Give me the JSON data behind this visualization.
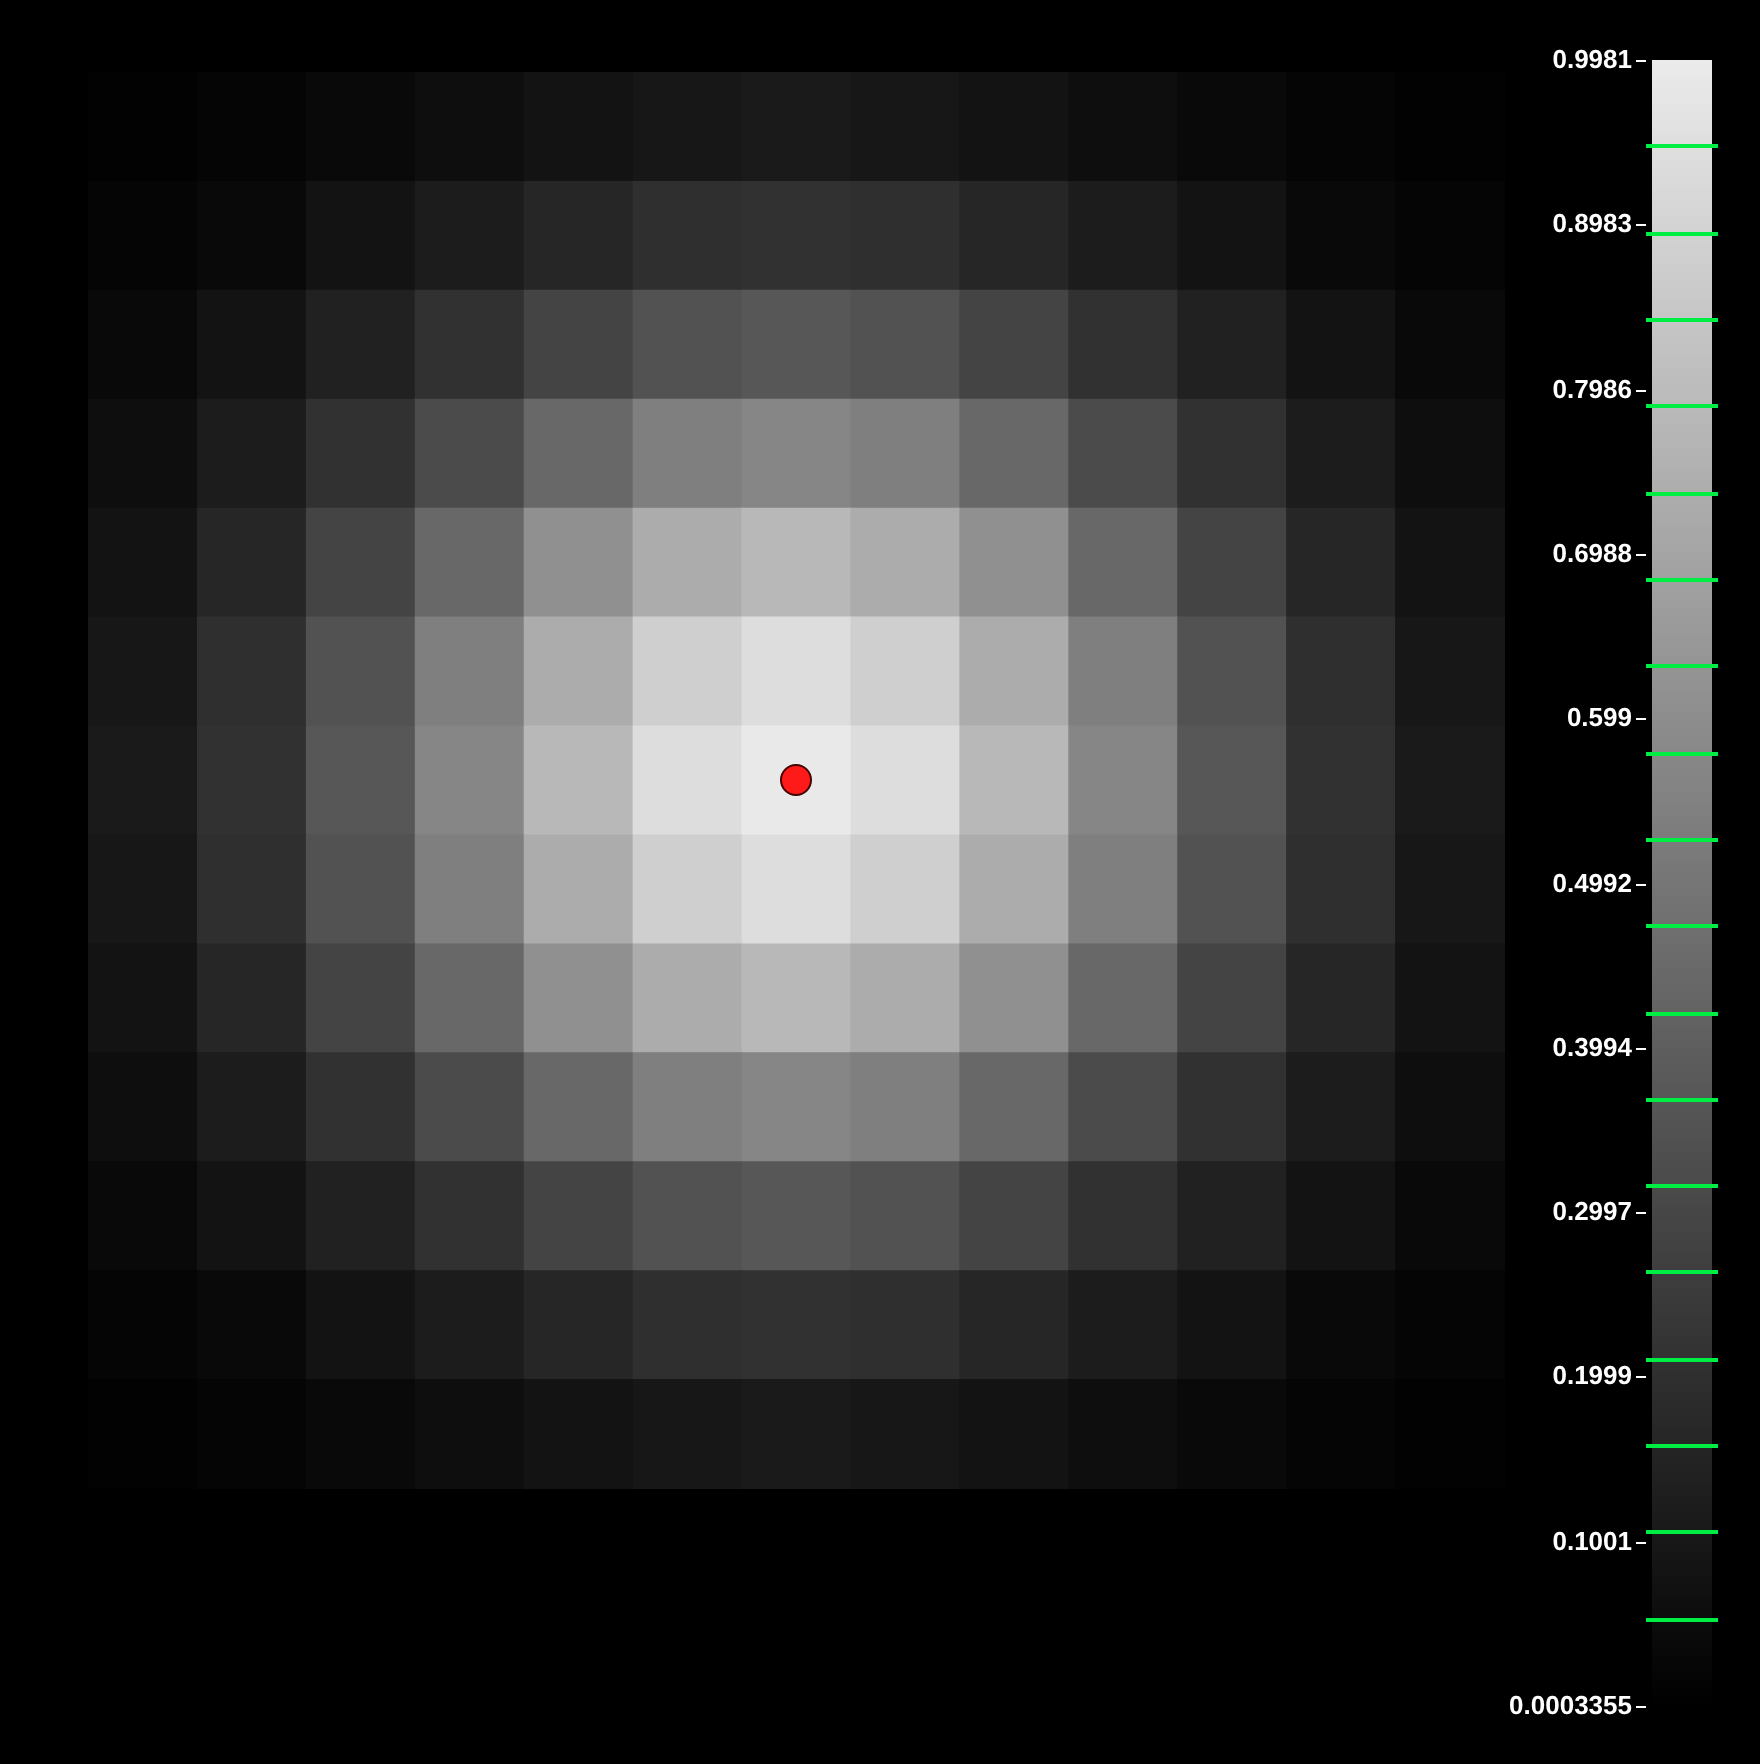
{
  "chart_data": {
    "type": "heatmap",
    "categories": [
      null,
      null,
      null,
      null,
      null,
      null,
      null,
      null,
      null,
      null,
      null,
      null,
      null
    ],
    "y_categories": [
      null,
      null,
      null,
      null,
      null,
      null,
      null,
      null,
      null,
      null,
      null,
      null,
      null
    ],
    "cells": [
      [
        0.01,
        0.02,
        0.04,
        0.06,
        0.08,
        0.1,
        0.11,
        0.1,
        0.08,
        0.06,
        0.04,
        0.02,
        0.01
      ],
      [
        0.02,
        0.04,
        0.08,
        0.12,
        0.16,
        0.2,
        0.21,
        0.2,
        0.16,
        0.12,
        0.08,
        0.04,
        0.02
      ],
      [
        0.04,
        0.08,
        0.14,
        0.21,
        0.29,
        0.35,
        0.37,
        0.35,
        0.29,
        0.21,
        0.14,
        0.08,
        0.04
      ],
      [
        0.06,
        0.12,
        0.21,
        0.32,
        0.44,
        0.54,
        0.57,
        0.54,
        0.44,
        0.32,
        0.21,
        0.12,
        0.06
      ],
      [
        0.08,
        0.16,
        0.29,
        0.44,
        0.61,
        0.73,
        0.78,
        0.73,
        0.61,
        0.44,
        0.29,
        0.16,
        0.08
      ],
      [
        0.1,
        0.2,
        0.35,
        0.54,
        0.73,
        0.88,
        0.94,
        0.88,
        0.73,
        0.54,
        0.35,
        0.2,
        0.1
      ],
      [
        0.11,
        0.21,
        0.37,
        0.57,
        0.78,
        0.94,
        0.99,
        0.94,
        0.78,
        0.57,
        0.37,
        0.21,
        0.11
      ],
      [
        0.1,
        0.2,
        0.35,
        0.54,
        0.73,
        0.88,
        0.94,
        0.88,
        0.73,
        0.54,
        0.35,
        0.2,
        0.1
      ],
      [
        0.08,
        0.16,
        0.29,
        0.44,
        0.61,
        0.73,
        0.78,
        0.73,
        0.61,
        0.44,
        0.29,
        0.16,
        0.08
      ],
      [
        0.06,
        0.12,
        0.21,
        0.32,
        0.44,
        0.54,
        0.57,
        0.54,
        0.44,
        0.32,
        0.21,
        0.12,
        0.06
      ],
      [
        0.04,
        0.08,
        0.14,
        0.21,
        0.29,
        0.35,
        0.37,
        0.35,
        0.29,
        0.21,
        0.14,
        0.08,
        0.04
      ],
      [
        0.02,
        0.04,
        0.08,
        0.12,
        0.16,
        0.2,
        0.21,
        0.2,
        0.16,
        0.12,
        0.08,
        0.04,
        0.02
      ],
      [
        0.01,
        0.02,
        0.04,
        0.06,
        0.08,
        0.1,
        0.11,
        0.1,
        0.08,
        0.06,
        0.04,
        0.02,
        0.01
      ]
    ],
    "clim": [
      0.0003355,
      0.9981
    ],
    "cticks": [
      0.0003355,
      {
        "value": 0.0529,
        "label": null
      },
      0.1001,
      {
        "value": 0.1054,
        "label": null
      },
      {
        "value": 0.1579,
        "label": null
      },
      0.1999,
      {
        "value": 0.2104,
        "label": null
      },
      {
        "value": 0.2629,
        "label": null
      },
      0.2997,
      {
        "value": 0.3154,
        "label": null
      },
      {
        "value": 0.3679,
        "label": null
      },
      0.3994,
      {
        "value": 0.4204,
        "label": null
      },
      {
        "value": 0.4729,
        "label": null
      },
      0.4992,
      {
        "value": 0.5254,
        "label": null
      },
      {
        "value": 0.5779,
        "label": null
      },
      0.599,
      {
        "value": 0.6304,
        "label": null
      },
      {
        "value": 0.6829,
        "label": null
      },
      0.6988,
      {
        "value": 0.7354,
        "label": null
      },
      {
        "value": 0.7879,
        "label": null
      },
      0.7986,
      {
        "value": 0.8404,
        "label": null
      },
      {
        "value": 0.8929,
        "label": null
      },
      0.8983,
      {
        "value": 0.9454,
        "label": null
      },
      0.9981
    ]
  }
}
